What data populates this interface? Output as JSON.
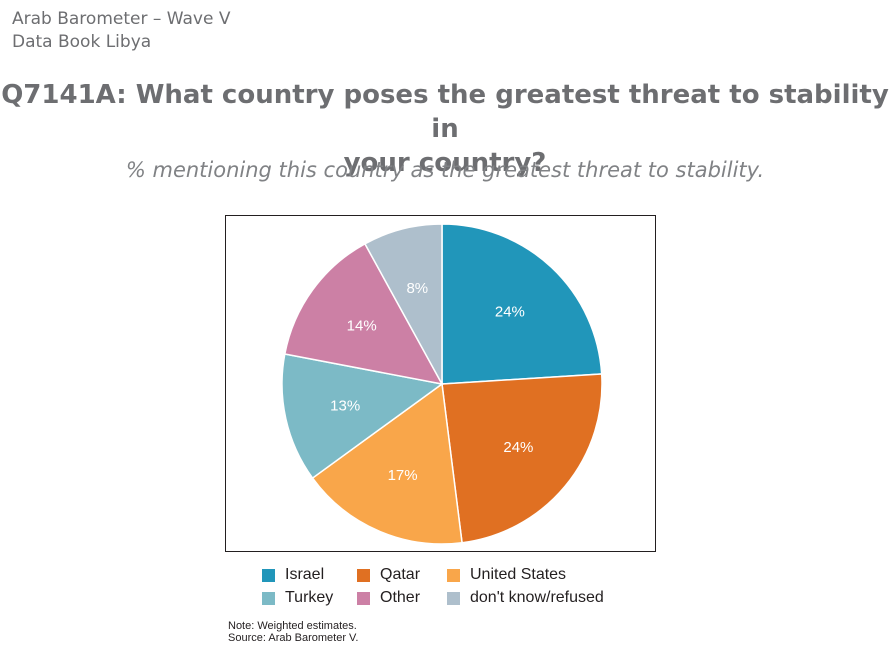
{
  "header": {
    "line1": "Arab Barometer – Wave V",
    "line2": "Data Book Libya"
  },
  "title": "Q7141A: What country poses the greatest threat to stability in your country?",
  "subtitle": "% mentioning this country as the greatest threat to stability.",
  "chart_data": {
    "type": "pie",
    "categories": [
      "Israel",
      "Qatar",
      "United States",
      "Turkey",
      "Other",
      "don't know/refused"
    ],
    "values": [
      24,
      24,
      17,
      13,
      14,
      8
    ],
    "labels": [
      "24%",
      "24%",
      "17%",
      "13%",
      "14%",
      "8%"
    ],
    "colors": [
      "#2196ba",
      "#e07022",
      "#f9a64a",
      "#7cbac6",
      "#cc80a5",
      "#aebfcc"
    ],
    "start": "12 o'clock, clockwise",
    "legend_position": "bottom"
  },
  "notes": {
    "line1": "Note: Weighted estimates.",
    "line2": "Source: Arab Barometer V."
  }
}
